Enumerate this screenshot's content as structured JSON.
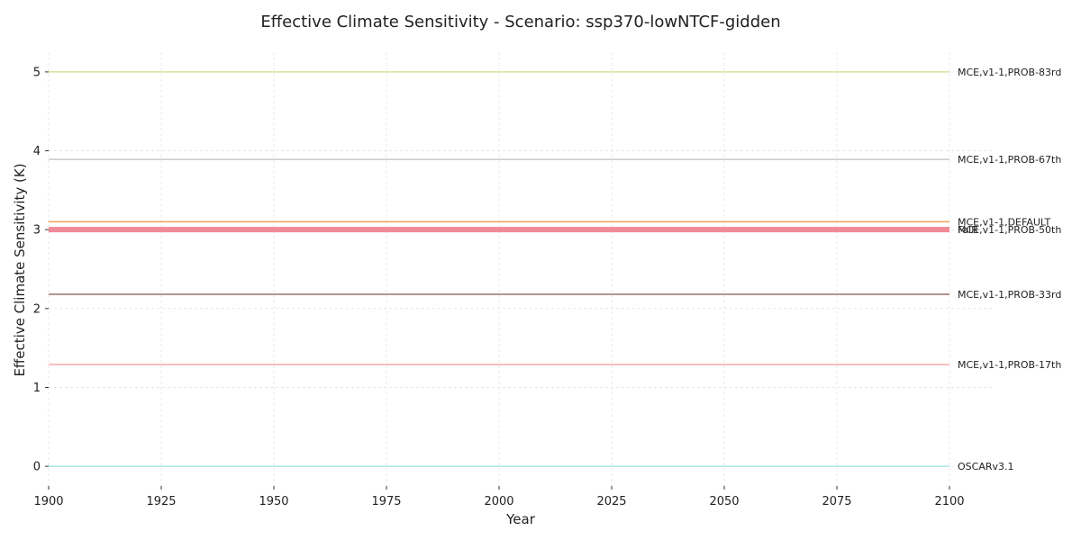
{
  "chart_data": {
    "type": "line",
    "title": "Effective Climate Sensitivity - Scenario: ssp370-lowNTCF-gidden",
    "xlabel": "Year",
    "ylabel": "Effective Climate Sensitivity (K)",
    "xlim": [
      1900,
      2100
    ],
    "ylim": [
      -0.25,
      5.25
    ],
    "xticks": [
      1900,
      1925,
      1950,
      1975,
      2000,
      2025,
      2050,
      2075,
      2100
    ],
    "yticks": [
      0,
      1,
      2,
      3,
      4,
      5
    ],
    "grid": true,
    "legend": "inline labels at right end of lines",
    "series": [
      {
        "name": "MCE,v1-1,PROB-83rd",
        "x": [
          1900,
          2100
        ],
        "y": [
          5.0,
          5.0
        ],
        "color": "#d4e39c",
        "width": 1.5
      },
      {
        "name": "MCE,v1-1,PROB-67th",
        "x": [
          1900,
          2100
        ],
        "y": [
          3.89,
          3.89
        ],
        "color": "#c8c8c8",
        "width": 1.5
      },
      {
        "name": "MCE,v1-1,DEFAULT",
        "x": [
          1900,
          2100
        ],
        "y": [
          3.1,
          3.1
        ],
        "color": "#f4a05a",
        "width": 1.5
      },
      {
        "name": "FaIR",
        "x": [
          1900,
          2100
        ],
        "y": [
          3.0,
          3.0
        ],
        "color": "#f08a96",
        "width": 6
      },
      {
        "name": "MCE,v1-1,PROB-50th",
        "x": [
          1900,
          2100
        ],
        "y": [
          3.0,
          3.0
        ],
        "color": "#f08a96",
        "width": 1.5
      },
      {
        "name": "MCE,v1-1,PROB-33rd",
        "x": [
          1900,
          2100
        ],
        "y": [
          2.18,
          2.18
        ],
        "color": "#9b7068",
        "width": 1.5
      },
      {
        "name": "MCE,v1-1,PROB-17th",
        "x": [
          1900,
          2100
        ],
        "y": [
          1.29,
          1.29
        ],
        "color": "#f9aaa8",
        "width": 1.5
      },
      {
        "name": "OSCARv3.1",
        "x": [
          1900,
          2100
        ],
        "y": [
          0.0,
          0.0
        ],
        "color": "#a8e6e3",
        "width": 1.5
      }
    ]
  }
}
